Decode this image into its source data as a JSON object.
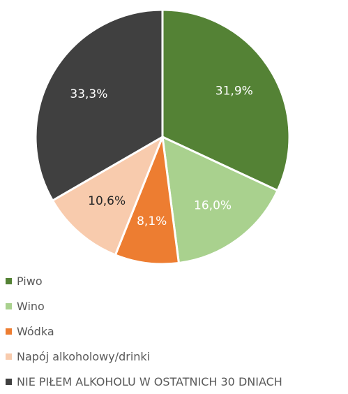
{
  "chart_data": {
    "type": "pie",
    "title": "",
    "slices": [
      {
        "label": "Piwo",
        "value": 31.9,
        "value_label": "31,9%",
        "color": "#548235",
        "text_color": "#ffffff"
      },
      {
        "label": "Wino",
        "value": 16.0,
        "value_label": "16,0%",
        "color": "#a9d18e",
        "text_color": "#ffffff"
      },
      {
        "label": "Wódka",
        "value": 8.1,
        "value_label": "8,1%",
        "color": "#ed7d31",
        "text_color": "#ffffff"
      },
      {
        "label": "Napój alkoholowy/drinki",
        "value": 10.6,
        "value_label": "10,6%",
        "color": "#f8cbad",
        "text_color": "#262626"
      },
      {
        "label": "NIE PIŁEM ALKOHOLU W OSTATNICH 30 DNIACH",
        "value": 33.3,
        "value_label": "33,3%",
        "color": "#404040",
        "text_color": "#ffffff"
      }
    ],
    "legend_position": "bottom-left",
    "start_angle": "12 o'clock, clockwise"
  }
}
